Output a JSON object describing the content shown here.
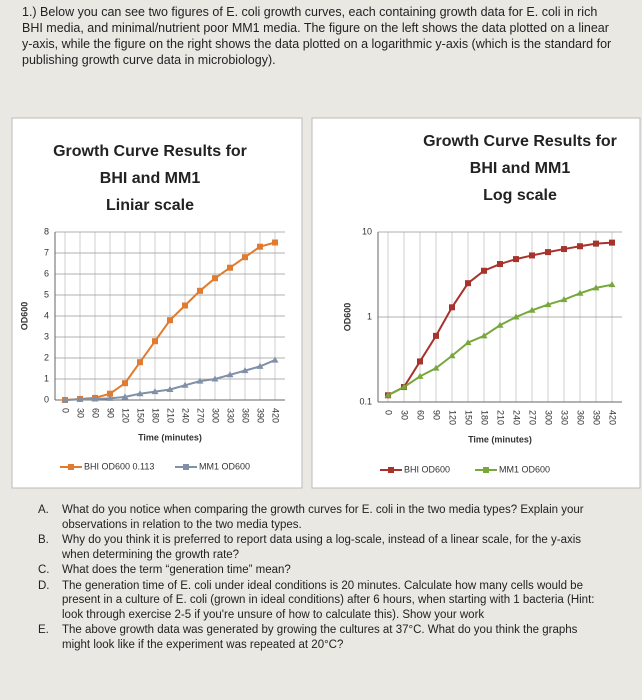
{
  "intro": "1.) Below you can see two figures of E. coli growth curves, each containing growth data for E. coli in rich BHI media, and minimal/nutrient poor MM1 media. The figure on the left shows the data plotted on a linear y-axis, while the figure on the right shows the data plotted on a logarithmic y-axis (which is the standard for publishing growth curve data in microbiology).",
  "chart_data": [
    {
      "type": "line",
      "title_lines": [
        "Growth Curve Results for",
        "BHI and MM1",
        "Liniar scale"
      ],
      "x_label": "Time (minutes)",
      "y_label": "OD600",
      "log": false,
      "grid": true,
      "x": [
        0,
        30,
        60,
        90,
        120,
        150,
        180,
        210,
        240,
        270,
        300,
        330,
        360,
        390,
        420
      ],
      "xlim": [
        0,
        420
      ],
      "ylim": [
        0,
        8
      ],
      "yticks": [
        0,
        1,
        2,
        3,
        4,
        5,
        6,
        7,
        8
      ],
      "series": [
        {
          "name": "BHI OD600 0.113",
          "color": "#e07b2f",
          "values": [
            0,
            0.05,
            0.1,
            0.3,
            0.8,
            1.8,
            2.8,
            3.8,
            4.5,
            5.2,
            5.8,
            6.3,
            6.8,
            7.3,
            7.5
          ]
        },
        {
          "name": "MM1 OD600",
          "color": "#8090a8",
          "values": [
            0,
            0.03,
            0.05,
            0.08,
            0.15,
            0.3,
            0.4,
            0.5,
            0.7,
            0.9,
            1.0,
            1.2,
            1.4,
            1.6,
            1.9
          ]
        }
      ]
    },
    {
      "type": "line",
      "title_lines": [
        "Growth Curve Results for",
        "BHI and MM1",
        "Log scale"
      ],
      "x_label": "Time (minutes)",
      "y_label": "OD600",
      "log": true,
      "grid": true,
      "x": [
        0,
        30,
        60,
        90,
        120,
        150,
        180,
        210,
        240,
        270,
        300,
        330,
        360,
        390,
        420
      ],
      "xlim": [
        0,
        420
      ],
      "ylim": [
        0.1,
        10
      ],
      "yticks": [
        0.1,
        1,
        10
      ],
      "series": [
        {
          "name": "BHI OD600",
          "color": "#a8322c",
          "values": [
            0.12,
            0.15,
            0.3,
            0.6,
            1.3,
            2.5,
            3.5,
            4.2,
            4.8,
            5.3,
            5.8,
            6.3,
            6.8,
            7.3,
            7.5
          ]
        },
        {
          "name": "MM1 OD600",
          "color": "#78a83c",
          "values": [
            0.12,
            0.15,
            0.2,
            0.25,
            0.35,
            0.5,
            0.6,
            0.8,
            1.0,
            1.2,
            1.4,
            1.6,
            1.9,
            2.2,
            2.4
          ]
        }
      ]
    }
  ],
  "questions": [
    {
      "letter": "A.",
      "text": "What do you notice when comparing the growth curves for E. coli in the two media types? Explain your observations in relation to the two media types."
    },
    {
      "letter": "B.",
      "text": "Why do you think it is preferred to report data using a log-scale, instead of a linear scale, for the y-axis when determining the growth rate?"
    },
    {
      "letter": "C.",
      "text": "What does the term “generation time” mean?"
    },
    {
      "letter": "D.",
      "text": "The generation time of E. coli under ideal conditions is 20 minutes. Calculate how many cells would be present in a culture of E. coli (grown in ideal conditions) after 6 hours, when starting with 1 bacteria (Hint: look through exercise 2-5 if you're unsure of how to calculate this). Show your work"
    },
    {
      "letter": "E.",
      "text": "The above growth data was generated by growing the cultures at 37°C. What do you think the graphs might look like if the experiment was repeated at 20°C?"
    }
  ]
}
